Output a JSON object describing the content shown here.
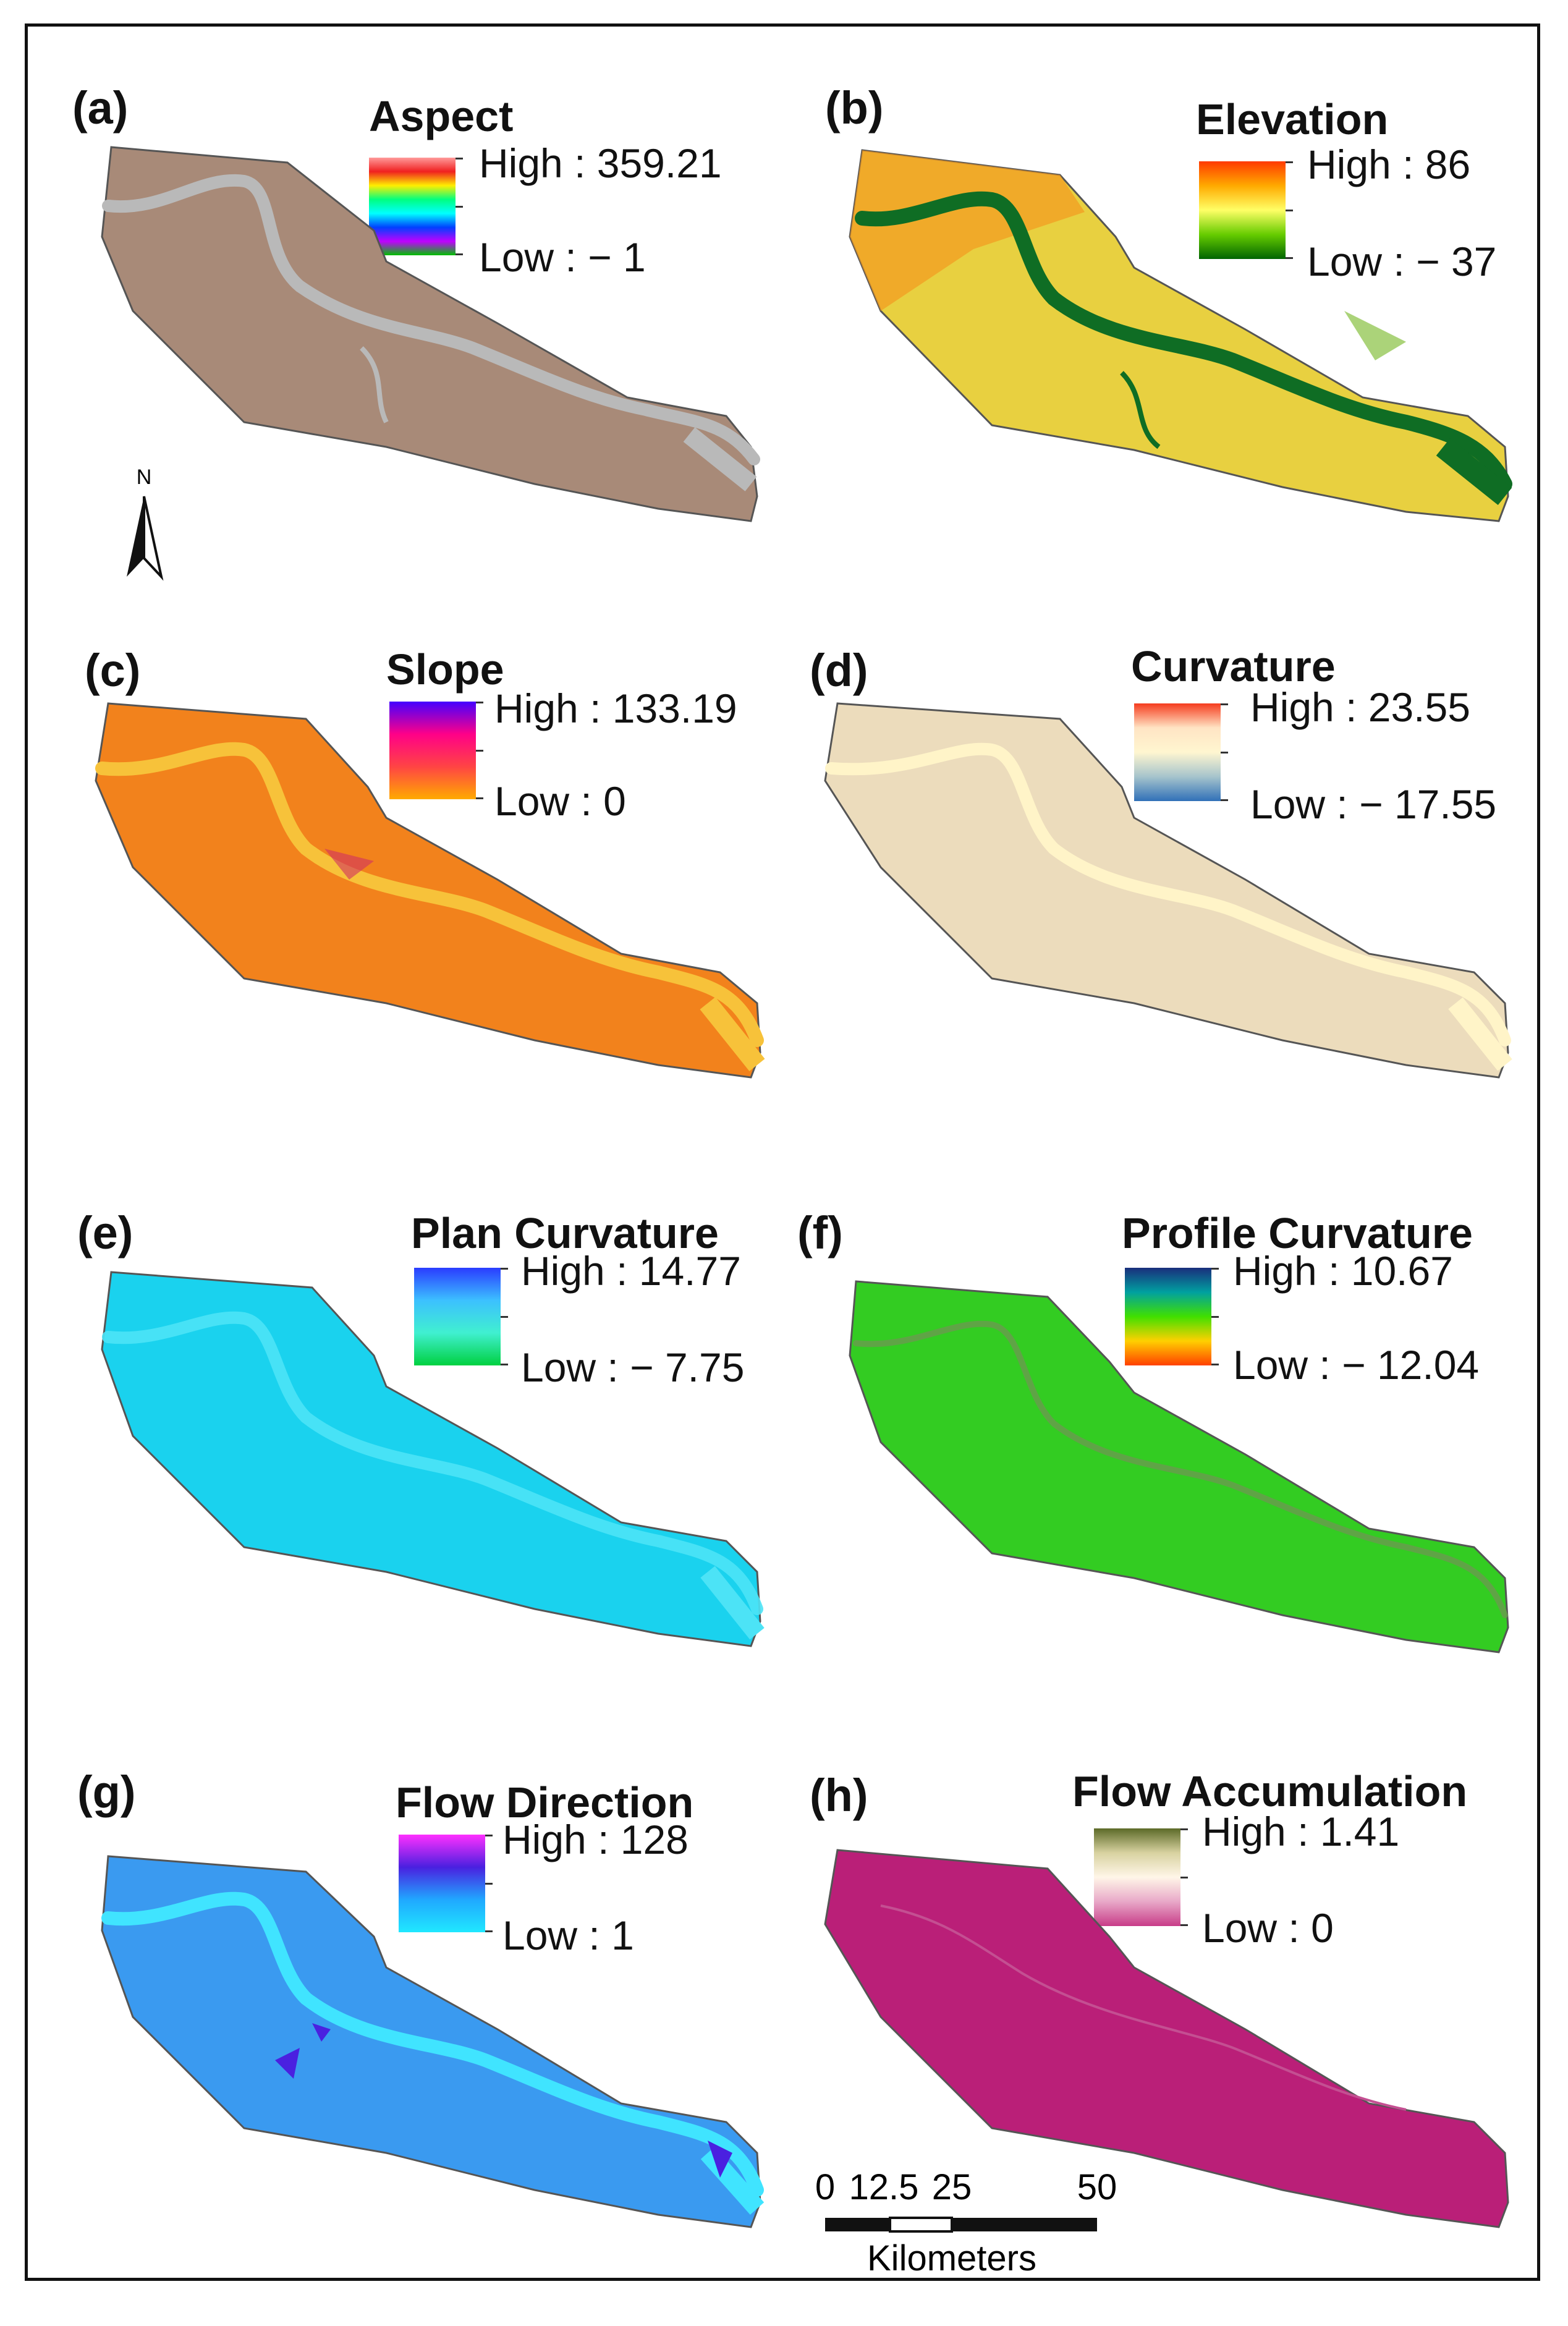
{
  "panels": [
    {
      "id": "a",
      "label": "(a)",
      "title": "Aspect",
      "high": "High : 359.21",
      "low": "Low : − 1",
      "gradient": [
        "#ff9a9a",
        "#f02020",
        "#ffee00",
        "#00ff80",
        "#00ffff",
        "#0040ff",
        "#c000ff",
        "#00c000"
      ],
      "base": "#a88a78",
      "river": "#b9b9b9"
    },
    {
      "id": "b",
      "label": "(b)",
      "title": "Elevation",
      "high": "High : 86",
      "low": "Low : − 37",
      "gradient": [
        "#ff3a00",
        "#ffaa00",
        "#ffff66",
        "#66cc00",
        "#006400"
      ],
      "base": "#e8d040",
      "river": "#0f6d24"
    },
    {
      "id": "c",
      "label": "(c)",
      "title": "Slope",
      "high": "High : 133.19",
      "low": "Low : 0",
      "gradient": [
        "#4400ff",
        "#ff0088",
        "#ff4444",
        "#ffaa00"
      ],
      "base": "#f2821c",
      "river": "#f7c23a"
    },
    {
      "id": "d",
      "label": "(d)",
      "title": "Curvature",
      "high": "High : 23.55",
      "low": "Low : − 17.55",
      "gradient": [
        "#f53c1e",
        "#ffe4c4",
        "#fff6d0",
        "#a6c4cc",
        "#3070b8"
      ],
      "base": "#ecdcbc",
      "river": "#fff4c8"
    },
    {
      "id": "e",
      "label": "(e)",
      "title": "Plan Curvature",
      "high": "High : 14.77",
      "low": "Low : − 7.75",
      "gradient": [
        "#2a3cff",
        "#3cc0ff",
        "#40f0d0",
        "#00d040"
      ],
      "base": "#1ad2ee",
      "river": "#4ce3f6"
    },
    {
      "id": "f",
      "label": "(f)",
      "title": "Profile Curvature",
      "high": "High : 10.67",
      "low": "Low : − 12.04",
      "gradient": [
        "#1a2e7c",
        "#00a0a0",
        "#40e000",
        "#ffd000",
        "#ff4000"
      ],
      "base": "#33cc22",
      "river": "#6a9a50"
    },
    {
      "id": "g",
      "label": "(g)",
      "title": "Flow Direction",
      "high": "High : 128",
      "low": "Low : 1",
      "gradient": [
        "#ff30ff",
        "#4a20e0",
        "#20a8ff",
        "#20e8ff"
      ],
      "base": "#3a9af0",
      "river": "#40e4ff"
    },
    {
      "id": "h",
      "label": "(h)",
      "title": "Flow Accumulation",
      "high": "High : 1.41",
      "low": "Low : 0",
      "gradient": [
        "#5c6a28",
        "#d8d2a0",
        "#fff6e8",
        "#e8a8c8",
        "#c83c88"
      ],
      "base": "#ba1f78",
      "river": "#c44f92"
    }
  ],
  "north": {
    "letter": "N"
  },
  "scale": {
    "ticks": [
      "0",
      "12.5",
      "25",
      "50"
    ],
    "unit": "Kilometers"
  }
}
